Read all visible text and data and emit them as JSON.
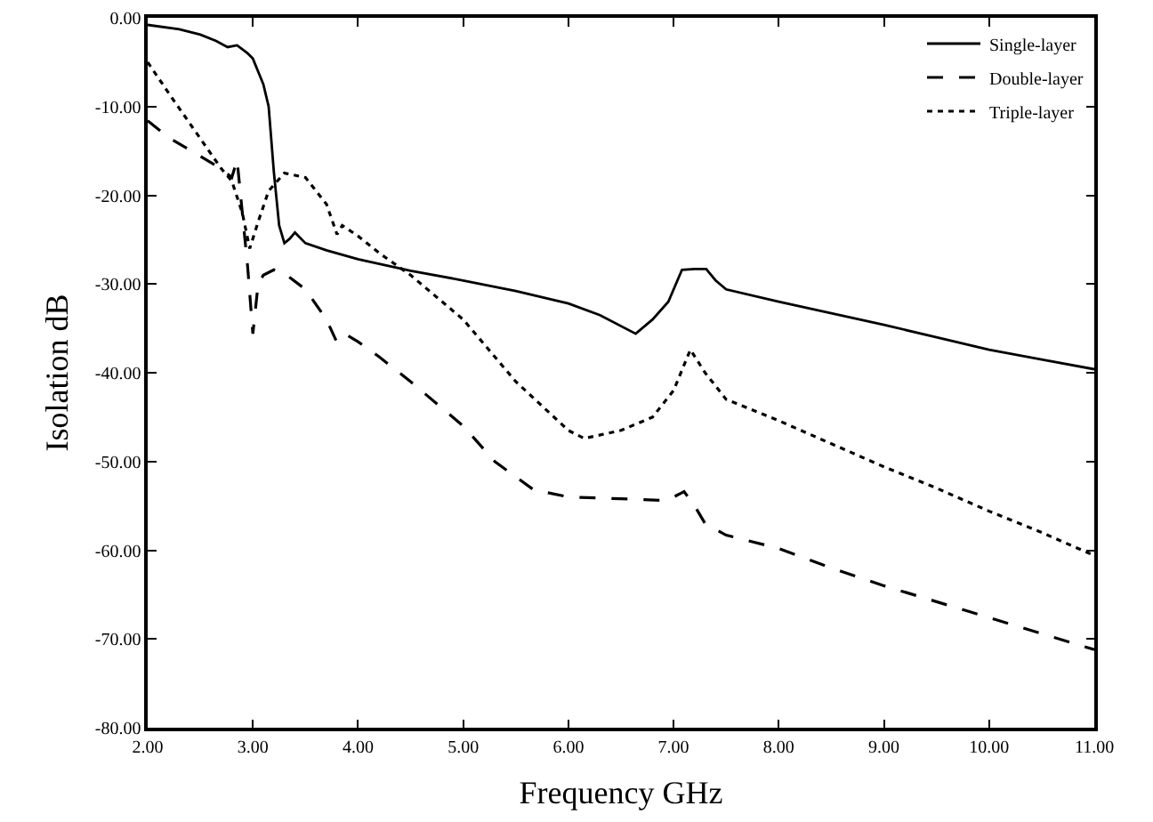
{
  "chart_data": {
    "type": "line",
    "xlabel": "Frequency GHz",
    "ylabel": "Isolation dB",
    "xlim": [
      2,
      11
    ],
    "xticks": [
      {
        "value": 2,
        "label": "2.00"
      },
      {
        "value": 3,
        "label": "3.00"
      },
      {
        "value": 4,
        "label": "4.00"
      },
      {
        "value": 5,
        "label": "5.00"
      },
      {
        "value": 6,
        "label": "6.00"
      },
      {
        "value": 7,
        "label": "7.00"
      },
      {
        "value": 8,
        "label": "8.00"
      },
      {
        "value": 9,
        "label": "9.00"
      },
      {
        "value": 10,
        "label": "10.00"
      },
      {
        "value": 11,
        "label": "11.00"
      }
    ],
    "ylim": [
      -80,
      0
    ],
    "yticks": [
      {
        "value": -80,
        "label": "-80.00"
      },
      {
        "value": -70,
        "label": "-70.00"
      },
      {
        "value": -60,
        "label": "-60.00"
      },
      {
        "value": -50,
        "label": "-50.00"
      },
      {
        "value": -40,
        "label": "-40.00"
      },
      {
        "value": -30,
        "label": "-30.00"
      },
      {
        "value": -20,
        "label": "-20.00"
      },
      {
        "value": -10,
        "label": "-10.00"
      },
      {
        "value": 0,
        "label": "0.00"
      }
    ],
    "grid": false,
    "legend": "top right",
    "series": [
      {
        "name": "Single-layer",
        "color": "#000000",
        "line_style": "solid",
        "x": [
          2,
          2.3,
          2.5,
          2.65,
          2.76,
          2.85,
          2.95,
          3.0,
          3.1,
          3.15,
          3.2,
          3.25,
          3.3,
          3.35,
          3.4,
          3.5,
          3.7,
          4,
          4.5,
          5,
          5.5,
          6,
          6.3,
          6.64,
          6.8,
          6.95,
          7.08,
          7.2,
          7.31,
          7.4,
          7.5,
          8,
          8.5,
          9,
          9.5,
          10,
          10.5,
          11
        ],
        "values": [
          -0.8,
          -1.3,
          -1.9,
          -2.6,
          -3.3,
          -3.1,
          -4,
          -4.6,
          -7.5,
          -10,
          -17.4,
          -23.4,
          -25.4,
          -24.9,
          -24.2,
          -25.4,
          -26.2,
          -27.2,
          -28.5,
          -29.6,
          -30.8,
          -32.2,
          -33.5,
          -35.6,
          -34,
          -32,
          -28.4,
          -28.3,
          -28.3,
          -29.6,
          -30.6,
          -32,
          -33.3,
          -34.6,
          -36,
          -37.4,
          -38.5,
          -39.6
        ]
      },
      {
        "name": "Double-layer",
        "color": "#000000",
        "line_style": "dashed",
        "x": [
          2,
          2.2,
          2.5,
          2.7,
          2.8,
          2.85,
          2.9,
          2.95,
          3.0,
          3.05,
          3.1,
          3.2,
          3.3,
          3.5,
          3.7,
          3.8,
          3.9,
          4,
          4.2,
          4.5,
          5,
          5.3,
          5.67,
          6,
          6.5,
          6.9,
          7.0,
          7.1,
          7.2,
          7.3,
          7.5,
          8,
          8.5,
          9,
          9.5,
          10,
          10.5,
          11
        ],
        "values": [
          -11.6,
          -13.5,
          -15.6,
          -17,
          -18,
          -16,
          -22,
          -28,
          -35.6,
          -30,
          -29,
          -28.4,
          -28.8,
          -30.6,
          -34,
          -36.6,
          -35.8,
          -36.5,
          -38.2,
          -41,
          -46,
          -50,
          -53.2,
          -54,
          -54.2,
          -54.4,
          -54,
          -53.4,
          -55,
          -57,
          -58.3,
          -59.8,
          -62,
          -64,
          -65.8,
          -67.6,
          -69.4,
          -71.2
        ]
      },
      {
        "name": "Triple-layer",
        "color": "#000000",
        "line_style": "dotted",
        "x": [
          2,
          2.2,
          2.5,
          2.7,
          2.8,
          2.9,
          2.97,
          3.05,
          3.15,
          3.3,
          3.5,
          3.7,
          3.8,
          3.85,
          4,
          4.2,
          4.5,
          5,
          5.5,
          6,
          6.15,
          6.5,
          6.8,
          7.0,
          7.16,
          7.3,
          7.5,
          8,
          8.5,
          9,
          9.5,
          10,
          10.5,
          11
        ],
        "values": [
          -5,
          -8.5,
          -13.6,
          -17,
          -18.4,
          -22,
          -26,
          -23,
          -19.5,
          -17.5,
          -18,
          -21,
          -24.4,
          -23.4,
          -24.6,
          -26.5,
          -29,
          -34,
          -41,
          -46.5,
          -47.4,
          -46.5,
          -45,
          -42,
          -37.4,
          -40,
          -43,
          -45.4,
          -48,
          -50.6,
          -53,
          -55.6,
          -58,
          -60.6
        ]
      }
    ]
  }
}
